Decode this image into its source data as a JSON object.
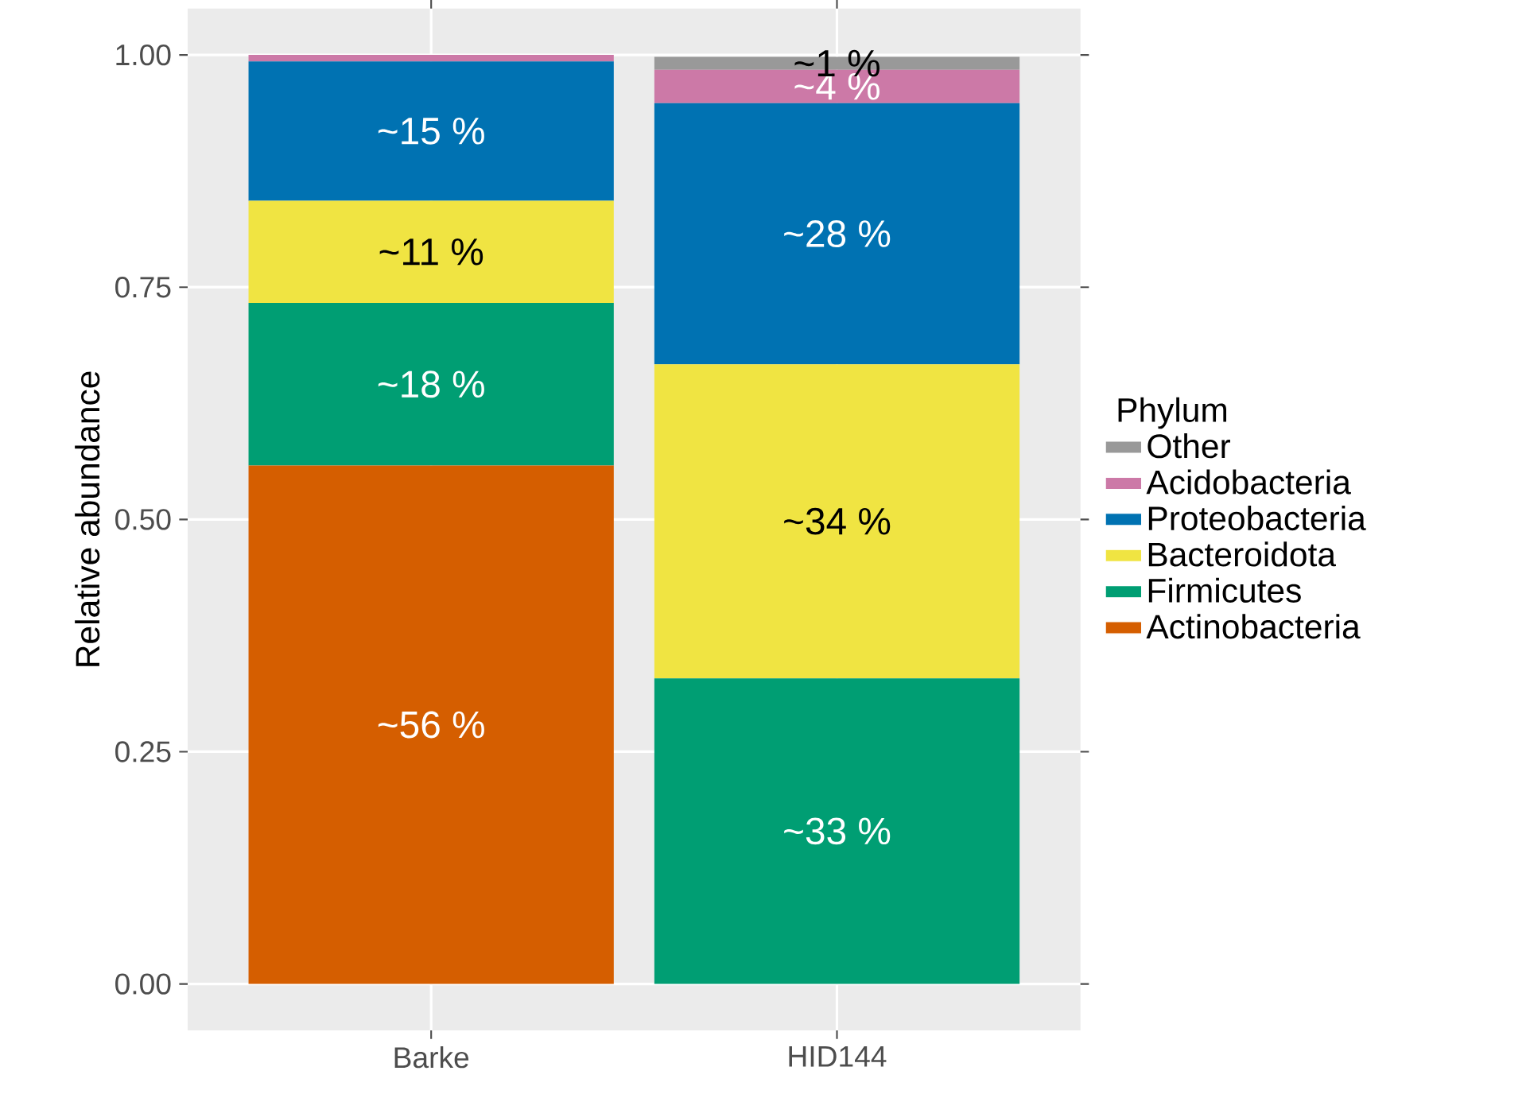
{
  "chart_data": {
    "type": "bar",
    "stacked": true,
    "ylabel": "Relative abundance",
    "legend_title": "Phylum",
    "legend": "right",
    "grid": true,
    "categories": [
      "Barke",
      "HID144"
    ],
    "ylim": [
      -0.05,
      1.05
    ],
    "yticks": [
      {
        "value": 0,
        "label": "0.00"
      },
      {
        "value": 0.25,
        "label": "0.25"
      },
      {
        "value": 0.5,
        "label": "0.50"
      },
      {
        "value": 0.75,
        "label": "0.75"
      },
      {
        "value": 1,
        "label": "1.00"
      }
    ],
    "series": [
      {
        "name": "Actinobacteria",
        "color": "#d55e00",
        "values": [
          0.558,
          0
        ],
        "value_labels": [
          "~56 %",
          null
        ]
      },
      {
        "name": "Firmicutes",
        "color": "#009e73",
        "values": [
          0.175,
          0.329
        ],
        "value_labels": [
          "~18 %",
          "~33 %"
        ]
      },
      {
        "name": "Bacteroidota",
        "color": "#f0e442",
        "values": [
          0.11,
          0.338
        ],
        "value_labels": [
          "~11 %",
          "~34 %"
        ]
      },
      {
        "name": "Proteobacteria",
        "color": "#0072b2",
        "values": [
          0.15,
          0.281
        ],
        "value_labels": [
          "~15 %",
          "~28 %"
        ]
      },
      {
        "name": "Acidobacteria",
        "color": "#cc79a7",
        "values": [
          0.007,
          0.036
        ],
        "value_labels": [
          null,
          "~4 %"
        ]
      },
      {
        "name": "Other",
        "color": "#999999",
        "values": [
          0,
          0.014
        ],
        "value_labels": [
          null,
          "~1 %"
        ]
      }
    ]
  }
}
